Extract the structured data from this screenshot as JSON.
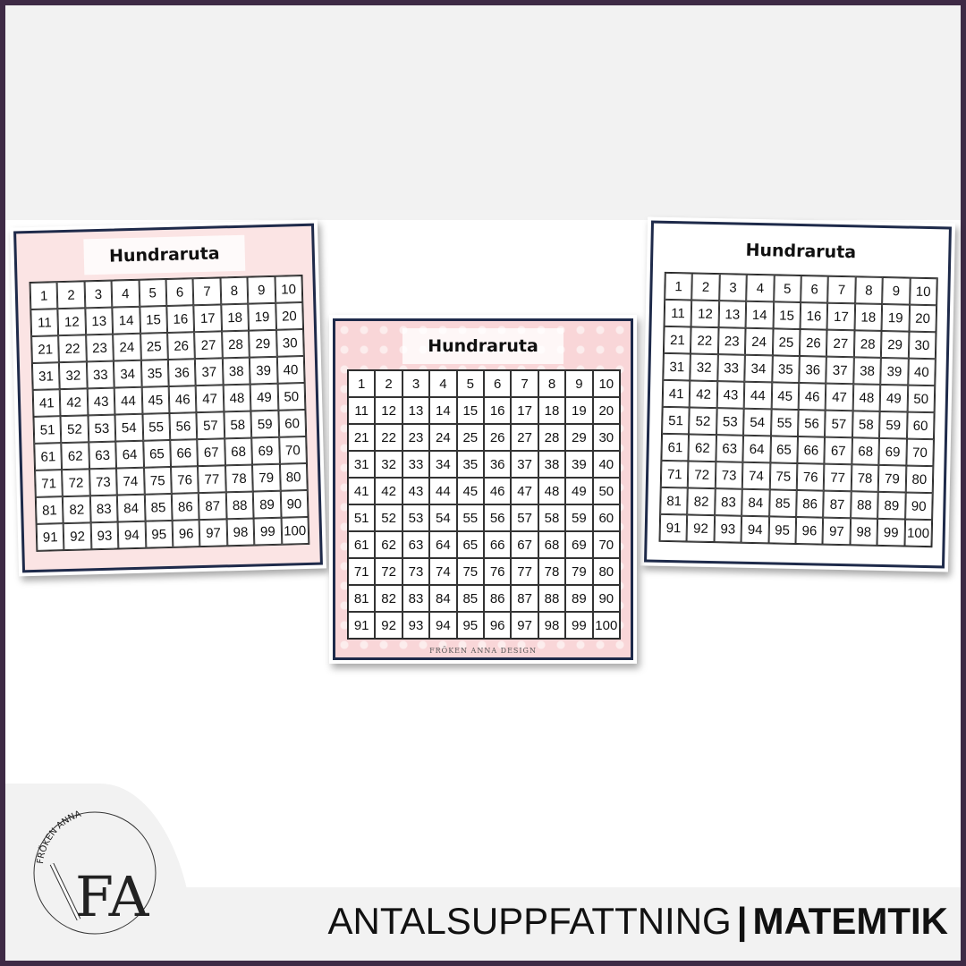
{
  "cards": {
    "left": {
      "title": "Hundraruta",
      "theme": "diamonds"
    },
    "center": {
      "title": "Hundraruta",
      "theme": "hearts",
      "brand": "FRÖKEN ANNA DESIGN"
    },
    "right": {
      "title": "Hundraruta",
      "theme": "crowns-and-hearts"
    }
  },
  "grid": {
    "numbers": [
      "1",
      "2",
      "3",
      "4",
      "5",
      "6",
      "7",
      "8",
      "9",
      "10",
      "11",
      "12",
      "13",
      "14",
      "15",
      "16",
      "17",
      "18",
      "19",
      "20",
      "21",
      "22",
      "23",
      "24",
      "25",
      "26",
      "27",
      "28",
      "29",
      "30",
      "31",
      "32",
      "33",
      "34",
      "35",
      "36",
      "37",
      "38",
      "39",
      "40",
      "41",
      "42",
      "43",
      "44",
      "45",
      "46",
      "47",
      "48",
      "49",
      "50",
      "51",
      "52",
      "53",
      "54",
      "55",
      "56",
      "57",
      "58",
      "59",
      "60",
      "61",
      "62",
      "63",
      "64",
      "65",
      "66",
      "67",
      "68",
      "69",
      "70",
      "71",
      "72",
      "73",
      "74",
      "75",
      "76",
      "77",
      "78",
      "79",
      "80",
      "81",
      "82",
      "83",
      "84",
      "85",
      "86",
      "87",
      "88",
      "89",
      "90",
      "91",
      "92",
      "93",
      "94",
      "95",
      "96",
      "97",
      "98",
      "99",
      "100"
    ]
  },
  "logo": {
    "text": "FRÖKEN ANNA",
    "monogram": "FA"
  },
  "headline": {
    "main": "ANTALSUPPFATTNING",
    "separator": "|",
    "bold": "MATEMTIK"
  },
  "colors": {
    "frame": "#3e2a45",
    "card_border": "#1e2a4a",
    "pink": "#f9d6d8",
    "band": "#f2f2f2"
  }
}
